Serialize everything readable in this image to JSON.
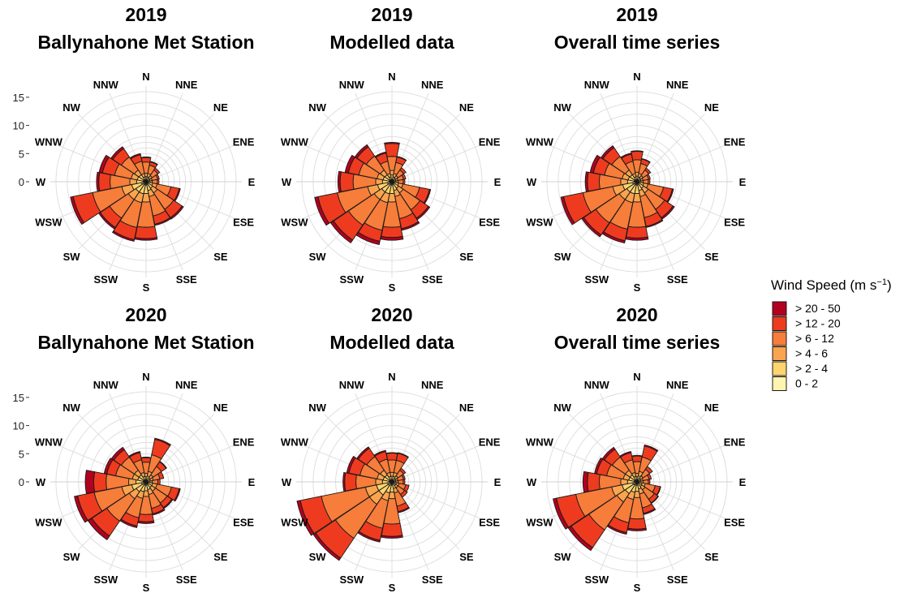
{
  "figure": {
    "legend": {
      "title_prefix": "Wind Speed (m s",
      "title_sup": "−1",
      "title_suffix": ")",
      "bins": [
        {
          "label": "> 20 - 50",
          "color": "#b2001f"
        },
        {
          "label": "> 12 - 20",
          "color": "#ee3b1f"
        },
        {
          "label": "> 6 - 12",
          "color": "#f67d3a"
        },
        {
          "label": "> 4 - 6",
          "color": "#fba44e"
        },
        {
          "label": "> 2 - 4",
          "color": "#fdd46e"
        },
        {
          "label": "0 - 2",
          "color": "#fff4b0"
        }
      ]
    }
  },
  "chart_data": [
    {
      "type": "wind-rose",
      "title_year": "2019",
      "title_name": "Ballynahone Met Station",
      "directions": [
        "N",
        "NNE",
        "NE",
        "ENE",
        "E",
        "ESE",
        "SE",
        "SSE",
        "S",
        "SSW",
        "SW",
        "WSW",
        "W",
        "WNW",
        "NW",
        "NNW"
      ],
      "r_ticks": [
        0,
        5,
        10,
        15
      ],
      "r_max": 17,
      "bins": [
        "0 - 2",
        "> 2 - 4",
        "> 4 - 6",
        "> 6 - 12",
        "> 12 - 20",
        "> 20 - 50"
      ],
      "values_pct": [
        [
          0.3,
          0.6,
          0.6,
          2.0,
          0.8,
          0.1
        ],
        [
          0.3,
          0.6,
          0.6,
          1.5,
          0.6,
          0.1
        ],
        [
          0.3,
          0.5,
          0.5,
          1.2,
          0.4,
          0.0
        ],
        [
          0.3,
          0.4,
          0.4,
          1.0,
          0.3,
          0.0
        ],
        [
          0.3,
          0.4,
          0.4,
          0.9,
          0.3,
          0.0
        ],
        [
          0.4,
          0.8,
          0.8,
          2.5,
          1.5,
          0.2
        ],
        [
          0.4,
          1.0,
          1.0,
          3.5,
          1.8,
          0.3
        ],
        [
          0.5,
          1.1,
          1.1,
          3.5,
          1.5,
          0.2
        ],
        [
          0.6,
          1.5,
          1.5,
          4.5,
          2.0,
          0.3
        ],
        [
          0.6,
          1.6,
          1.6,
          4.5,
          2.2,
          0.3
        ],
        [
          0.6,
          1.6,
          1.6,
          4.0,
          2.0,
          0.3
        ],
        [
          0.8,
          1.8,
          1.8,
          5.3,
          3.5,
          0.5
        ],
        [
          0.5,
          1.2,
          1.2,
          3.5,
          2.0,
          0.4
        ],
        [
          0.5,
          1.1,
          1.1,
          3.0,
          2.2,
          0.6
        ],
        [
          0.5,
          1.0,
          1.0,
          2.8,
          1.8,
          0.4
        ],
        [
          0.3,
          0.6,
          0.6,
          2.2,
          1.2,
          0.2
        ]
      ]
    },
    {
      "type": "wind-rose",
      "title_year": "2019",
      "title_name": "Modelled data",
      "directions": [
        "N",
        "NNE",
        "NE",
        "ENE",
        "E",
        "ESE",
        "SE",
        "SSE",
        "S",
        "SSW",
        "SW",
        "WSW",
        "W",
        "WNW",
        "NW",
        "NNW"
      ],
      "r_ticks": [
        0,
        5,
        10,
        15
      ],
      "r_max": 17,
      "bins": [
        "0 - 2",
        "> 2 - 4",
        "> 4 - 6",
        "> 6 - 12",
        "> 12 - 20",
        "> 20 - 50"
      ],
      "values_pct": [
        [
          0.4,
          0.8,
          0.8,
          2.5,
          2.3,
          0.2
        ],
        [
          0.3,
          0.6,
          0.6,
          2.0,
          1.0,
          0.1
        ],
        [
          0.3,
          0.5,
          0.5,
          1.2,
          0.5,
          0.0
        ],
        [
          0.3,
          0.4,
          0.4,
          1.0,
          0.4,
          0.0
        ],
        [
          0.3,
          0.4,
          0.4,
          0.9,
          0.3,
          0.0
        ],
        [
          0.4,
          0.8,
          0.8,
          3.0,
          1.8,
          0.2
        ],
        [
          0.4,
          1.0,
          1.0,
          3.6,
          1.8,
          0.3
        ],
        [
          0.5,
          1.1,
          1.1,
          4.0,
          1.8,
          0.3
        ],
        [
          0.6,
          1.5,
          1.5,
          4.5,
          1.8,
          0.5
        ],
        [
          0.6,
          1.6,
          1.6,
          5.0,
          2.0,
          0.6
        ],
        [
          0.6,
          1.6,
          1.6,
          5.5,
          3.2,
          0.6
        ],
        [
          0.8,
          1.8,
          1.8,
          5.5,
          3.5,
          0.6
        ],
        [
          0.5,
          1.2,
          1.2,
          4.0,
          2.3,
          0.4
        ],
        [
          0.5,
          1.1,
          1.1,
          3.3,
          1.9,
          0.6
        ],
        [
          0.5,
          1.0,
          1.0,
          3.0,
          2.0,
          0.4
        ],
        [
          0.3,
          0.6,
          0.6,
          2.2,
          1.5,
          0.2
        ]
      ]
    },
    {
      "type": "wind-rose",
      "title_year": "2019",
      "title_name": "Overall time series",
      "directions": [
        "N",
        "NNE",
        "NE",
        "ENE",
        "E",
        "ESE",
        "SE",
        "SSE",
        "S",
        "SSW",
        "SW",
        "WSW",
        "W",
        "WNW",
        "NW",
        "NNW"
      ],
      "r_ticks": [
        0,
        5,
        10,
        15
      ],
      "r_max": 17,
      "bins": [
        "0 - 2",
        "> 2 - 4",
        "> 4 - 6",
        "> 6 - 12",
        "> 12 - 20",
        "> 20 - 50"
      ],
      "values_pct": [
        [
          0.3,
          0.7,
          0.7,
          2.2,
          1.5,
          0.1
        ],
        [
          0.3,
          0.6,
          0.6,
          1.8,
          0.8,
          0.1
        ],
        [
          0.3,
          0.5,
          0.5,
          1.2,
          0.4,
          0.0
        ],
        [
          0.3,
          0.4,
          0.4,
          1.0,
          0.3,
          0.0
        ],
        [
          0.3,
          0.4,
          0.4,
          0.9,
          0.3,
          0.0
        ],
        [
          0.4,
          0.8,
          0.8,
          2.8,
          1.6,
          0.2
        ],
        [
          0.4,
          1.0,
          1.0,
          3.5,
          1.8,
          0.3
        ],
        [
          0.5,
          1.1,
          1.1,
          3.8,
          1.6,
          0.2
        ],
        [
          0.6,
          1.5,
          1.5,
          4.5,
          1.9,
          0.4
        ],
        [
          0.6,
          1.6,
          1.6,
          4.8,
          2.1,
          0.4
        ],
        [
          0.6,
          1.6,
          1.6,
          5.0,
          2.6,
          0.4
        ],
        [
          0.8,
          1.8,
          1.8,
          5.4,
          3.5,
          0.5
        ],
        [
          0.5,
          1.2,
          1.2,
          3.8,
          2.1,
          0.4
        ],
        [
          0.5,
          1.1,
          1.1,
          3.2,
          2.0,
          0.6
        ],
        [
          0.5,
          1.0,
          1.0,
          2.9,
          1.9,
          0.4
        ],
        [
          0.3,
          0.6,
          0.6,
          2.2,
          1.3,
          0.2
        ]
      ]
    },
    {
      "type": "wind-rose",
      "title_year": "2020",
      "title_name": "Ballynahone Met Station",
      "directions": [
        "N",
        "NNE",
        "NE",
        "ENE",
        "E",
        "ESE",
        "SE",
        "SSE",
        "S",
        "SSW",
        "SW",
        "WSW",
        "W",
        "WNW",
        "NW",
        "NNW"
      ],
      "r_ticks": [
        0,
        5,
        10,
        15
      ],
      "r_max": 17,
      "bins": [
        "0 - 2",
        "> 2 - 4",
        "> 4 - 6",
        "> 6 - 12",
        "> 12 - 20",
        "> 20 - 50"
      ],
      "values_pct": [
        [
          0.3,
          0.6,
          0.6,
          2.0,
          0.8,
          0.1
        ],
        [
          0.3,
          0.8,
          0.8,
          3.0,
          2.8,
          0.2
        ],
        [
          0.3,
          0.6,
          0.6,
          1.8,
          1.0,
          0.1
        ],
        [
          0.3,
          0.5,
          0.5,
          1.2,
          0.7,
          0.0
        ],
        [
          0.3,
          0.4,
          0.4,
          1.0,
          0.4,
          0.0
        ],
        [
          0.4,
          0.8,
          0.8,
          2.6,
          1.4,
          0.2
        ],
        [
          0.4,
          0.8,
          0.8,
          2.5,
          1.0,
          0.2
        ],
        [
          0.5,
          0.9,
          0.9,
          2.5,
          1.0,
          0.2
        ],
        [
          0.6,
          1.0,
          1.0,
          3.2,
          1.3,
          0.3
        ],
        [
          0.6,
          1.2,
          1.2,
          3.5,
          1.5,
          0.3
        ],
        [
          0.6,
          1.5,
          1.5,
          4.8,
          3.2,
          0.8
        ],
        [
          0.8,
          1.8,
          1.8,
          5.0,
          3.0,
          0.6
        ],
        [
          0.5,
          1.3,
          1.3,
          4.0,
          2.2,
          1.5
        ],
        [
          0.5,
          1.0,
          1.0,
          3.0,
          1.6,
          0.5
        ],
        [
          0.5,
          1.0,
          1.0,
          2.8,
          1.6,
          0.5
        ],
        [
          0.3,
          0.7,
          0.7,
          2.3,
          1.3,
          0.2
        ]
      ]
    },
    {
      "type": "wind-rose",
      "title_year": "2020",
      "title_name": "Modelled data",
      "directions": [
        "N",
        "NNE",
        "NE",
        "ENE",
        "E",
        "ESE",
        "SE",
        "SSE",
        "S",
        "SSW",
        "SW",
        "WSW",
        "W",
        "WNW",
        "NW",
        "NNW"
      ],
      "r_ticks": [
        0,
        5,
        10,
        15
      ],
      "r_max": 17,
      "bins": [
        "0 - 2",
        "> 2 - 4",
        "> 4 - 6",
        "> 6 - 12",
        "> 12 - 20",
        "> 20 - 50"
      ],
      "values_pct": [
        [
          0.3,
          0.7,
          0.7,
          2.2,
          1.2,
          0.1
        ],
        [
          0.3,
          0.7,
          0.7,
          2.2,
          1.3,
          0.1
        ],
        [
          0.3,
          0.5,
          0.5,
          1.2,
          0.4,
          0.0
        ],
        [
          0.3,
          0.4,
          0.4,
          1.0,
          0.3,
          0.0
        ],
        [
          0.3,
          0.4,
          0.4,
          0.9,
          0.3,
          0.0
        ],
        [
          0.3,
          0.5,
          0.5,
          1.2,
          0.6,
          0.0
        ],
        [
          0.3,
          0.5,
          0.5,
          1.4,
          0.6,
          0.0
        ],
        [
          0.4,
          0.8,
          0.8,
          2.4,
          1.0,
          0.2
        ],
        [
          0.6,
          1.2,
          1.2,
          4.5,
          2.2,
          0.3
        ],
        [
          0.6,
          1.4,
          1.4,
          5.0,
          2.2,
          0.3
        ],
        [
          0.8,
          2.0,
          2.0,
          7.3,
          4.2,
          0.5
        ],
        [
          0.8,
          2.0,
          2.0,
          8.0,
          3.8,
          0.6
        ],
        [
          0.5,
          1.2,
          1.2,
          3.5,
          2.0,
          0.3
        ],
        [
          0.5,
          1.1,
          1.1,
          3.1,
          2.0,
          0.4
        ],
        [
          0.5,
          1.0,
          1.0,
          2.9,
          1.8,
          0.3
        ],
        [
          0.3,
          0.7,
          0.7,
          2.4,
          1.4,
          0.2
        ]
      ]
    },
    {
      "type": "wind-rose",
      "title_year": "2020",
      "title_name": "Overall time series",
      "directions": [
        "N",
        "NNE",
        "NE",
        "ENE",
        "E",
        "ESE",
        "SE",
        "SSE",
        "S",
        "SSW",
        "SW",
        "WSW",
        "W",
        "WNW",
        "NW",
        "NNW"
      ],
      "r_ticks": [
        0,
        5,
        10,
        15
      ],
      "r_max": 17,
      "bins": [
        "0 - 2",
        "> 2 - 4",
        "> 4 - 6",
        "> 6 - 12",
        "> 12 - 20",
        "> 20 - 50"
      ],
      "values_pct": [
        [
          0.3,
          0.6,
          0.6,
          2.1,
          1.0,
          0.1
        ],
        [
          0.3,
          0.8,
          0.8,
          2.6,
          2.0,
          0.2
        ],
        [
          0.3,
          0.5,
          0.5,
          1.4,
          0.6,
          0.0
        ],
        [
          0.3,
          0.4,
          0.4,
          1.1,
          0.4,
          0.0
        ],
        [
          0.3,
          0.4,
          0.4,
          0.9,
          0.3,
          0.0
        ],
        [
          0.3,
          0.6,
          0.6,
          1.8,
          0.9,
          0.1
        ],
        [
          0.3,
          0.7,
          0.7,
          2.0,
          0.8,
          0.1
        ],
        [
          0.4,
          0.9,
          0.9,
          2.5,
          1.0,
          0.2
        ],
        [
          0.6,
          1.1,
          1.1,
          3.8,
          1.8,
          0.3
        ],
        [
          0.6,
          1.3,
          1.3,
          4.2,
          1.8,
          0.3
        ],
        [
          0.7,
          1.8,
          1.8,
          6.0,
          3.8,
          0.6
        ],
        [
          0.8,
          1.9,
          1.9,
          6.5,
          3.5,
          0.6
        ],
        [
          0.5,
          1.2,
          1.2,
          3.8,
          2.1,
          0.8
        ],
        [
          0.5,
          1.0,
          1.0,
          3.0,
          1.8,
          0.4
        ],
        [
          0.5,
          1.0,
          1.0,
          2.8,
          1.7,
          0.4
        ],
        [
          0.3,
          0.7,
          0.7,
          2.3,
          1.3,
          0.2
        ]
      ]
    }
  ]
}
